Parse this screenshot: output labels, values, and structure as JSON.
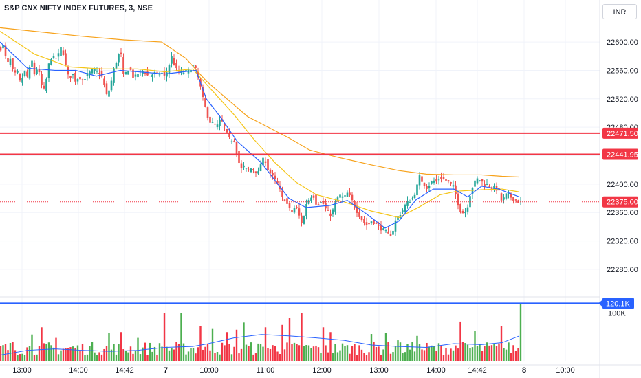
{
  "header": {
    "title": "S&P CNX NIFTY INDEX FUTURES, 3, NSE",
    "currency": "INR"
  },
  "colors": {
    "up": "#26a69a",
    "down": "#ef5350",
    "vol_up": "#4caf50",
    "vol_down": "#f23645",
    "ma_fast": "#2962ff",
    "ma_mid": "#f5c518",
    "ma_slow": "#f7a21b",
    "hline": "#f23645",
    "vol_line": "#2962ff",
    "grid": "#f0f3fa",
    "axis_text": "#131722"
  },
  "chart_data": {
    "type": "candlestick",
    "symbol": "S&P CNX NIFTY INDEX FUTURES",
    "interval": "3",
    "exchange": "NSE",
    "price_axis": {
      "ticks": [
        "22600.00",
        "22560.00",
        "22520.00",
        "22480.00",
        "22440.00",
        "22400.00",
        "22360.00",
        "22320.00",
        "22280.00"
      ],
      "range": [
        22248,
        22632
      ]
    },
    "time_axis": {
      "ticks": [
        "13:00",
        "14:00",
        "14:42",
        "7",
        "10:00",
        "11:00",
        "12:00",
        "13:00",
        "14:00",
        "14:42",
        "8",
        "10:00"
      ],
      "bold_ticks": [
        "7",
        "8"
      ]
    },
    "horizontal_lines": [
      {
        "label": "22471.50",
        "value": 22471.5
      },
      {
        "label": "22441.95",
        "value": 22441.95
      }
    ],
    "last_price": {
      "label": "22375.00",
      "value": 22375.0
    },
    "volume": {
      "axis_label": "100K",
      "marker": {
        "label": "120.1K",
        "value": 120.1
      }
    },
    "close_path": [
      [
        0,
        22590
      ],
      [
        5,
        22595
      ],
      [
        10,
        22568
      ],
      [
        15,
        22575
      ],
      [
        20,
        22552
      ],
      [
        25,
        22558
      ],
      [
        30,
        22540
      ],
      [
        35,
        22560
      ],
      [
        40,
        22550
      ],
      [
        46,
        22575
      ],
      [
        50,
        22555
      ],
      [
        55,
        22565
      ],
      [
        60,
        22540
      ],
      [
        65,
        22530
      ],
      [
        70,
        22565
      ],
      [
        75,
        22580
      ],
      [
        80,
        22575
      ],
      [
        85,
        22582
      ],
      [
        90,
        22595
      ],
      [
        95,
        22568
      ],
      [
        100,
        22548
      ],
      [
        105,
        22556
      ],
      [
        110,
        22545
      ],
      [
        115,
        22552
      ],
      [
        120,
        22546
      ],
      [
        127,
        22554
      ],
      [
        135,
        22560
      ],
      [
        140,
        22558
      ],
      [
        146,
        22556
      ],
      [
        150,
        22545
      ],
      [
        155,
        22525
      ],
      [
        160,
        22535
      ],
      [
        165,
        22560
      ],
      [
        170,
        22575
      ],
      [
        175,
        22590
      ],
      [
        180,
        22548
      ],
      [
        185,
        22562
      ],
      [
        190,
        22560
      ],
      [
        195,
        22548
      ],
      [
        200,
        22556
      ],
      [
        205,
        22558
      ],
      [
        210,
        22560
      ],
      [
        215,
        22552
      ],
      [
        220,
        22554
      ],
      [
        225,
        22556
      ],
      [
        230,
        22554
      ],
      [
        235,
        22557
      ],
      [
        240,
        22550
      ],
      [
        245,
        22565
      ],
      [
        250,
        22580
      ],
      [
        255,
        22562
      ],
      [
        260,
        22558
      ],
      [
        265,
        22557
      ],
      [
        270,
        22558
      ],
      [
        275,
        22560
      ],
      [
        280,
        22567
      ],
      [
        285,
        22560
      ],
      [
        290,
        22543
      ],
      [
        295,
        22520
      ],
      [
        300,
        22502
      ],
      [
        305,
        22488
      ],
      [
        310,
        22485
      ],
      [
        315,
        22480
      ],
      [
        320,
        22490
      ],
      [
        325,
        22485
      ],
      [
        330,
        22470
      ],
      [
        335,
        22460
      ],
      [
        340,
        22465
      ],
      [
        345,
        22440
      ],
      [
        350,
        22420
      ],
      [
        355,
        22425
      ],
      [
        360,
        22418
      ],
      [
        365,
        22422
      ],
      [
        370,
        22420
      ],
      [
        375,
        22414
      ],
      [
        380,
        22432
      ],
      [
        385,
        22436
      ],
      [
        390,
        22420
      ],
      [
        395,
        22412
      ],
      [
        400,
        22405
      ],
      [
        405,
        22398
      ],
      [
        410,
        22380
      ],
      [
        415,
        22378
      ],
      [
        420,
        22365
      ],
      [
        425,
        22360
      ],
      [
        430,
        22370
      ],
      [
        435,
        22355
      ],
      [
        440,
        22342
      ],
      [
        445,
        22372
      ],
      [
        450,
        22380
      ],
      [
        455,
        22386
      ],
      [
        460,
        22372
      ],
      [
        465,
        22375
      ],
      [
        470,
        22372
      ],
      [
        475,
        22362
      ],
      [
        480,
        22356
      ],
      [
        485,
        22365
      ],
      [
        490,
        22380
      ],
      [
        495,
        22384
      ],
      [
        500,
        22380
      ],
      [
        505,
        22387
      ],
      [
        510,
        22380
      ],
      [
        515,
        22370
      ],
      [
        520,
        22360
      ],
      [
        525,
        22352
      ],
      [
        530,
        22345
      ],
      [
        535,
        22342
      ],
      [
        540,
        22348
      ],
      [
        545,
        22346
      ],
      [
        550,
        22340
      ],
      [
        555,
        22337
      ],
      [
        560,
        22333
      ],
      [
        565,
        22328
      ],
      [
        570,
        22330
      ],
      [
        575,
        22348
      ],
      [
        580,
        22356
      ],
      [
        585,
        22362
      ],
      [
        590,
        22372
      ],
      [
        595,
        22376
      ],
      [
        600,
        22380
      ],
      [
        605,
        22392
      ],
      [
        610,
        22410
      ],
      [
        615,
        22402
      ],
      [
        620,
        22395
      ],
      [
        625,
        22400
      ],
      [
        630,
        22405
      ],
      [
        635,
        22403
      ],
      [
        640,
        22410
      ],
      [
        645,
        22407
      ],
      [
        650,
        22404
      ],
      [
        655,
        22400
      ],
      [
        660,
        22395
      ],
      [
        665,
        22375
      ],
      [
        670,
        22362
      ],
      [
        675,
        22358
      ],
      [
        680,
        22370
      ],
      [
        685,
        22392
      ],
      [
        690,
        22402
      ],
      [
        695,
        22408
      ],
      [
        700,
        22404
      ],
      [
        705,
        22398
      ],
      [
        710,
        22400
      ],
      [
        715,
        22395
      ],
      [
        720,
        22395
      ],
      [
        725,
        22390
      ],
      [
        730,
        22374
      ],
      [
        735,
        22385
      ],
      [
        740,
        22384
      ],
      [
        745,
        22380
      ],
      [
        750,
        22377
      ],
      [
        755,
        22375
      ]
    ],
    "ma_fast_path": [
      [
        0,
        22600
      ],
      [
        40,
        22563
      ],
      [
        80,
        22560
      ],
      [
        110,
        22560
      ],
      [
        140,
        22552
      ],
      [
        175,
        22560
      ],
      [
        240,
        22555
      ],
      [
        285,
        22560
      ],
      [
        300,
        22520
      ],
      [
        320,
        22495
      ],
      [
        345,
        22460
      ],
      [
        380,
        22430
      ],
      [
        420,
        22380
      ],
      [
        445,
        22367
      ],
      [
        480,
        22370
      ],
      [
        505,
        22377
      ],
      [
        530,
        22360
      ],
      [
        560,
        22338
      ],
      [
        580,
        22348
      ],
      [
        605,
        22378
      ],
      [
        630,
        22393
      ],
      [
        660,
        22393
      ],
      [
        680,
        22382
      ],
      [
        700,
        22397
      ],
      [
        725,
        22393
      ],
      [
        755,
        22382
      ]
    ],
    "ma_mid_path": [
      [
        0,
        22615
      ],
      [
        50,
        22583
      ],
      [
        100,
        22565
      ],
      [
        150,
        22562
      ],
      [
        200,
        22562
      ],
      [
        240,
        22558
      ],
      [
        280,
        22562
      ],
      [
        310,
        22530
      ],
      [
        340,
        22498
      ],
      [
        370,
        22462
      ],
      [
        400,
        22430
      ],
      [
        430,
        22403
      ],
      [
        460,
        22385
      ],
      [
        500,
        22375
      ],
      [
        540,
        22362
      ],
      [
        580,
        22353
      ],
      [
        610,
        22368
      ],
      [
        640,
        22385
      ],
      [
        665,
        22390
      ],
      [
        700,
        22392
      ],
      [
        730,
        22393
      ],
      [
        755,
        22389
      ]
    ],
    "ma_slow_path": [
      [
        0,
        22620
      ],
      [
        60,
        22614
      ],
      [
        120,
        22608
      ],
      [
        180,
        22603
      ],
      [
        235,
        22600
      ],
      [
        270,
        22577
      ],
      [
        300,
        22545
      ],
      [
        330,
        22520
      ],
      [
        360,
        22495
      ],
      [
        390,
        22480
      ],
      [
        420,
        22465
      ],
      [
        450,
        22448
      ],
      [
        490,
        22438
      ],
      [
        540,
        22427
      ],
      [
        580,
        22419
      ],
      [
        620,
        22414
      ],
      [
        660,
        22413
      ],
      [
        700,
        22413
      ],
      [
        730,
        22411
      ],
      [
        755,
        22410
      ]
    ],
    "volume_avg_path": [
      [
        0,
        12
      ],
      [
        40,
        22
      ],
      [
        80,
        25
      ],
      [
        120,
        22
      ],
      [
        160,
        20
      ],
      [
        200,
        22
      ],
      [
        240,
        28
      ],
      [
        280,
        30
      ],
      [
        300,
        35
      ],
      [
        340,
        48
      ],
      [
        380,
        55
      ],
      [
        420,
        52
      ],
      [
        460,
        48
      ],
      [
        500,
        43
      ],
      [
        540,
        33
      ],
      [
        580,
        30
      ],
      [
        620,
        28
      ],
      [
        660,
        36
      ],
      [
        700,
        34
      ],
      [
        730,
        38
      ],
      [
        755,
        52
      ]
    ],
    "volume_spikes": [
      [
        20,
        40
      ],
      [
        48,
        55
      ],
      [
        62,
        70
      ],
      [
        80,
        48
      ],
      [
        160,
        58
      ],
      [
        175,
        60
      ],
      [
        200,
        48
      ],
      [
        240,
        100
      ],
      [
        265,
        100
      ],
      [
        290,
        72
      ],
      [
        310,
        68
      ],
      [
        330,
        60
      ],
      [
        345,
        65
      ],
      [
        355,
        80
      ],
      [
        385,
        70
      ],
      [
        410,
        75
      ],
      [
        420,
        90
      ],
      [
        440,
        100
      ],
      [
        470,
        70
      ],
      [
        480,
        60
      ],
      [
        540,
        56
      ],
      [
        560,
        58
      ],
      [
        580,
        43
      ],
      [
        605,
        52
      ],
      [
        668,
        82
      ],
      [
        690,
        62
      ],
      [
        730,
        72
      ],
      [
        757,
        120
      ]
    ]
  }
}
